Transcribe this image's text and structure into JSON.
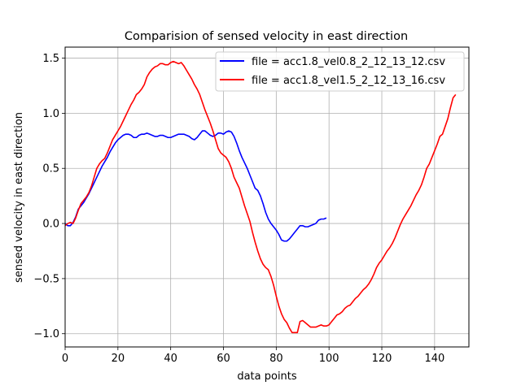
{
  "chart_data": {
    "type": "line",
    "title": "Comparision of sensed velocity in east direction",
    "xlabel": "data points",
    "ylabel": "sensed velocity in east direction",
    "xlim": [
      0,
      153
    ],
    "ylim": [
      -1.12,
      1.6
    ],
    "grid": true,
    "legend_position": "top-right",
    "xticks": [
      0,
      20,
      40,
      60,
      80,
      100,
      120,
      140
    ],
    "yticks": [
      -1.0,
      -0.5,
      0.0,
      0.5,
      1.0,
      1.5
    ],
    "xtick_labels": [
      "0",
      "20",
      "40",
      "60",
      "80",
      "100",
      "120",
      "140"
    ],
    "ytick_labels": [
      "−1.0",
      "−0.5",
      "0.0",
      "0.5",
      "1.0",
      "1.5"
    ],
    "series": [
      {
        "name": "file = acc1.8_vel0.8_2_12_13_12.csv",
        "color": "#0000ff",
        "points": [
          [
            0,
            0.0
          ],
          [
            1,
            -0.02
          ],
          [
            2,
            -0.02
          ],
          [
            3,
            0.01
          ],
          [
            4,
            0.06
          ],
          [
            5,
            0.13
          ],
          [
            6,
            0.16
          ],
          [
            7,
            0.19
          ],
          [
            8,
            0.23
          ],
          [
            9,
            0.27
          ],
          [
            10,
            0.32
          ],
          [
            11,
            0.37
          ],
          [
            12,
            0.42
          ],
          [
            13,
            0.47
          ],
          [
            14,
            0.52
          ],
          [
            15,
            0.56
          ],
          [
            16,
            0.6
          ],
          [
            17,
            0.65
          ],
          [
            18,
            0.69
          ],
          [
            19,
            0.73
          ],
          [
            20,
            0.76
          ],
          [
            21,
            0.78
          ],
          [
            22,
            0.8
          ],
          [
            23,
            0.81
          ],
          [
            24,
            0.81
          ],
          [
            25,
            0.8
          ],
          [
            26,
            0.78
          ],
          [
            27,
            0.78
          ],
          [
            28,
            0.8
          ],
          [
            29,
            0.81
          ],
          [
            30,
            0.81
          ],
          [
            31,
            0.82
          ],
          [
            32,
            0.81
          ],
          [
            33,
            0.8
          ],
          [
            34,
            0.79
          ],
          [
            35,
            0.79
          ],
          [
            36,
            0.8
          ],
          [
            37,
            0.8
          ],
          [
            38,
            0.79
          ],
          [
            39,
            0.78
          ],
          [
            40,
            0.78
          ],
          [
            41,
            0.79
          ],
          [
            42,
            0.8
          ],
          [
            43,
            0.81
          ],
          [
            44,
            0.81
          ],
          [
            45,
            0.81
          ],
          [
            46,
            0.8
          ],
          [
            47,
            0.79
          ],
          [
            48,
            0.77
          ],
          [
            49,
            0.76
          ],
          [
            50,
            0.78
          ],
          [
            51,
            0.81
          ],
          [
            52,
            0.84
          ],
          [
            53,
            0.84
          ],
          [
            54,
            0.82
          ],
          [
            55,
            0.8
          ],
          [
            56,
            0.79
          ],
          [
            57,
            0.8
          ],
          [
            58,
            0.82
          ],
          [
            59,
            0.82
          ],
          [
            60,
            0.81
          ],
          [
            61,
            0.83
          ],
          [
            62,
            0.84
          ],
          [
            63,
            0.83
          ],
          [
            64,
            0.79
          ],
          [
            65,
            0.73
          ],
          [
            66,
            0.66
          ],
          [
            67,
            0.6
          ],
          [
            68,
            0.55
          ],
          [
            69,
            0.5
          ],
          [
            70,
            0.44
          ],
          [
            71,
            0.38
          ],
          [
            72,
            0.32
          ],
          [
            73,
            0.3
          ],
          [
            74,
            0.25
          ],
          [
            75,
            0.18
          ],
          [
            76,
            0.1
          ],
          [
            77,
            0.04
          ],
          [
            78,
            0.0
          ],
          [
            79,
            -0.03
          ],
          [
            80,
            -0.06
          ],
          [
            81,
            -0.1
          ],
          [
            82,
            -0.15
          ],
          [
            83,
            -0.16
          ],
          [
            84,
            -0.16
          ],
          [
            85,
            -0.14
          ],
          [
            86,
            -0.11
          ],
          [
            87,
            -0.08
          ],
          [
            88,
            -0.05
          ],
          [
            89,
            -0.02
          ],
          [
            90,
            -0.02
          ],
          [
            91,
            -0.03
          ],
          [
            92,
            -0.03
          ],
          [
            93,
            -0.02
          ],
          [
            94,
            -0.01
          ],
          [
            95,
            0.0
          ],
          [
            96,
            0.03
          ],
          [
            97,
            0.04
          ],
          [
            98,
            0.04
          ],
          [
            99,
            0.05
          ]
        ]
      },
      {
        "name": "file = acc1.8_vel1.5_2_12_13_16.csv",
        "color": "#ff0000",
        "points": [
          [
            0,
            -0.02
          ],
          [
            1,
            0.0
          ],
          [
            2,
            0.01
          ],
          [
            3,
            0.0
          ],
          [
            4,
            0.05
          ],
          [
            5,
            0.12
          ],
          [
            6,
            0.18
          ],
          [
            7,
            0.21
          ],
          [
            8,
            0.24
          ],
          [
            9,
            0.28
          ],
          [
            10,
            0.34
          ],
          [
            11,
            0.42
          ],
          [
            12,
            0.5
          ],
          [
            13,
            0.54
          ],
          [
            14,
            0.57
          ],
          [
            15,
            0.59
          ],
          [
            16,
            0.64
          ],
          [
            17,
            0.7
          ],
          [
            18,
            0.76
          ],
          [
            19,
            0.8
          ],
          [
            20,
            0.84
          ],
          [
            21,
            0.88
          ],
          [
            22,
            0.93
          ],
          [
            23,
            0.98
          ],
          [
            24,
            1.03
          ],
          [
            25,
            1.08
          ],
          [
            26,
            1.12
          ],
          [
            27,
            1.17
          ],
          [
            28,
            1.19
          ],
          [
            29,
            1.22
          ],
          [
            30,
            1.26
          ],
          [
            31,
            1.33
          ],
          [
            32,
            1.37
          ],
          [
            33,
            1.4
          ],
          [
            34,
            1.42
          ],
          [
            35,
            1.43
          ],
          [
            36,
            1.45
          ],
          [
            37,
            1.45
          ],
          [
            38,
            1.44
          ],
          [
            39,
            1.44
          ],
          [
            40,
            1.46
          ],
          [
            41,
            1.47
          ],
          [
            42,
            1.46
          ],
          [
            43,
            1.45
          ],
          [
            44,
            1.46
          ],
          [
            45,
            1.43
          ],
          [
            46,
            1.39
          ],
          [
            47,
            1.35
          ],
          [
            48,
            1.31
          ],
          [
            49,
            1.26
          ],
          [
            50,
            1.22
          ],
          [
            51,
            1.17
          ],
          [
            52,
            1.1
          ],
          [
            53,
            1.03
          ],
          [
            54,
            0.97
          ],
          [
            55,
            0.91
          ],
          [
            56,
            0.84
          ],
          [
            57,
            0.76
          ],
          [
            58,
            0.68
          ],
          [
            59,
            0.64
          ],
          [
            60,
            0.62
          ],
          [
            61,
            0.6
          ],
          [
            62,
            0.56
          ],
          [
            63,
            0.5
          ],
          [
            64,
            0.42
          ],
          [
            65,
            0.37
          ],
          [
            66,
            0.32
          ],
          [
            67,
            0.24
          ],
          [
            68,
            0.16
          ],
          [
            69,
            0.09
          ],
          [
            70,
            0.02
          ],
          [
            71,
            -0.08
          ],
          [
            72,
            -0.17
          ],
          [
            73,
            -0.25
          ],
          [
            74,
            -0.32
          ],
          [
            75,
            -0.37
          ],
          [
            76,
            -0.4
          ],
          [
            77,
            -0.42
          ],
          [
            78,
            -0.48
          ],
          [
            79,
            -0.56
          ],
          [
            80,
            -0.66
          ],
          [
            81,
            -0.75
          ],
          [
            82,
            -0.82
          ],
          [
            83,
            -0.87
          ],
          [
            84,
            -0.9
          ],
          [
            85,
            -0.95
          ],
          [
            86,
            -0.99
          ],
          [
            87,
            -0.99
          ],
          [
            88,
            -0.99
          ],
          [
            89,
            -0.89
          ],
          [
            90,
            -0.88
          ],
          [
            91,
            -0.9
          ],
          [
            92,
            -0.92
          ],
          [
            93,
            -0.94
          ],
          [
            94,
            -0.94
          ],
          [
            95,
            -0.94
          ],
          [
            96,
            -0.93
          ],
          [
            97,
            -0.92
          ],
          [
            98,
            -0.93
          ],
          [
            99,
            -0.93
          ],
          [
            100,
            -0.92
          ],
          [
            101,
            -0.89
          ],
          [
            102,
            -0.86
          ],
          [
            103,
            -0.83
          ],
          [
            104,
            -0.82
          ],
          [
            105,
            -0.8
          ],
          [
            106,
            -0.77
          ],
          [
            107,
            -0.75
          ],
          [
            108,
            -0.74
          ],
          [
            109,
            -0.71
          ],
          [
            110,
            -0.68
          ],
          [
            111,
            -0.66
          ],
          [
            112,
            -0.63
          ],
          [
            113,
            -0.6
          ],
          [
            114,
            -0.58
          ],
          [
            115,
            -0.55
          ],
          [
            116,
            -0.51
          ],
          [
            117,
            -0.46
          ],
          [
            118,
            -0.4
          ],
          [
            119,
            -0.36
          ],
          [
            120,
            -0.33
          ],
          [
            121,
            -0.29
          ],
          [
            122,
            -0.25
          ],
          [
            123,
            -0.22
          ],
          [
            124,
            -0.18
          ],
          [
            125,
            -0.13
          ],
          [
            126,
            -0.07
          ],
          [
            127,
            -0.01
          ],
          [
            128,
            0.04
          ],
          [
            129,
            0.08
          ],
          [
            130,
            0.12
          ],
          [
            131,
            0.16
          ],
          [
            132,
            0.21
          ],
          [
            133,
            0.26
          ],
          [
            134,
            0.3
          ],
          [
            135,
            0.35
          ],
          [
            136,
            0.42
          ],
          [
            137,
            0.5
          ],
          [
            138,
            0.54
          ],
          [
            139,
            0.6
          ],
          [
            140,
            0.66
          ],
          [
            141,
            0.72
          ],
          [
            142,
            0.79
          ],
          [
            143,
            0.81
          ],
          [
            144,
            0.88
          ],
          [
            145,
            0.95
          ],
          [
            146,
            1.05
          ],
          [
            147,
            1.14
          ],
          [
            148,
            1.17
          ]
        ]
      }
    ]
  }
}
